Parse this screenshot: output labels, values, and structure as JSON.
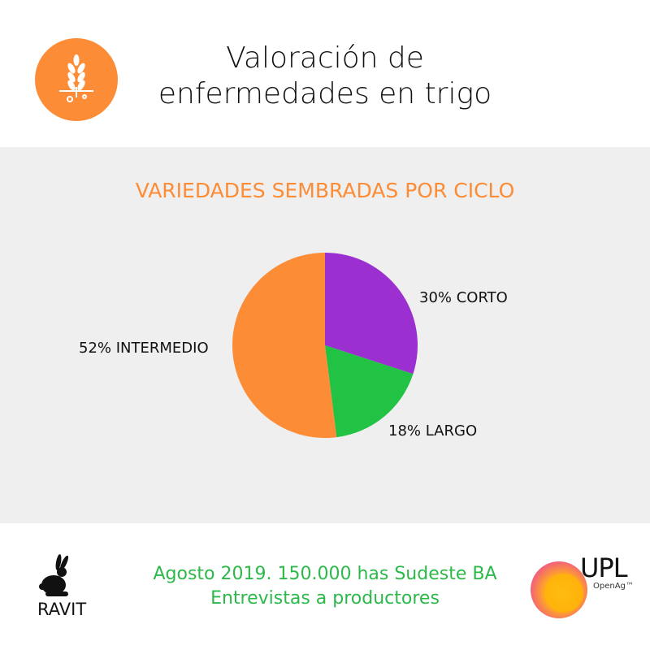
{
  "header": {
    "title_line1": "Valoración de",
    "title_line2": "enfermedades en trigo",
    "logo_icon": "wheat-icon",
    "logo_color": "#fd8c36"
  },
  "chart_data": {
    "type": "pie",
    "title": "VARIEDADES SEMBRADAS POR CICLO",
    "slices": [
      {
        "label": "30% CORTO",
        "category": "CORTO",
        "value": 30,
        "color": "#9b2fd0"
      },
      {
        "label": "18% LARGO",
        "category": "LARGO",
        "value": 18,
        "color": "#22c244"
      },
      {
        "label": "52% INTERMEDIO",
        "category": "INTERMEDIO",
        "value": 52,
        "color": "#fd8c36"
      }
    ]
  },
  "footer": {
    "line1": "Agosto 2019. 150.000 has Sudeste BA",
    "line2": "Entrevistas a productores",
    "left_logo": "RAVIT",
    "right_logo": "UPL",
    "right_logo_sub": "OpenAg™",
    "text_color": "#2db84a"
  }
}
